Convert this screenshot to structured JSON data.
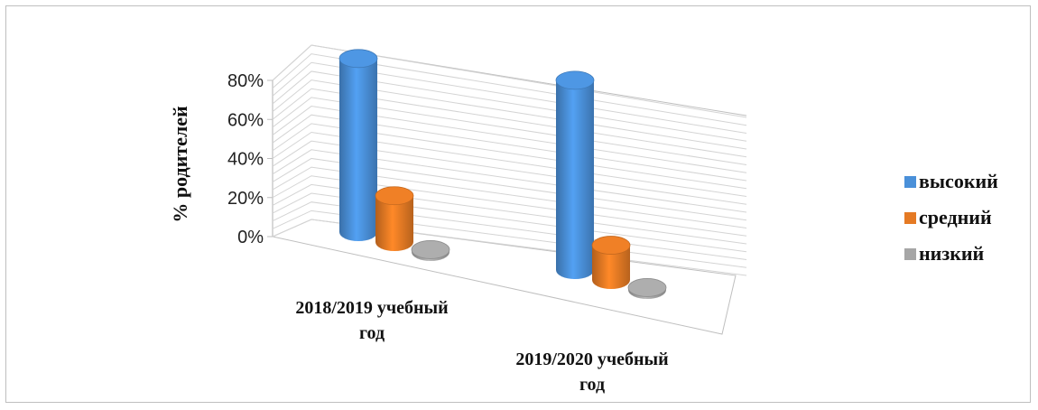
{
  "chart_data": {
    "type": "bar",
    "style": "3d-cylinder",
    "categories": [
      "2018/2019 учебный год",
      "2019/2020 учебный год"
    ],
    "category_lines": [
      [
        "2018/2019 учебный",
        "год"
      ],
      [
        "2019/2020 учебный",
        "год"
      ]
    ],
    "series": [
      {
        "name": "высокий",
        "values": [
          0.75,
          0.82
        ],
        "color": "#4a90d9"
      },
      {
        "name": "средний",
        "values": [
          0.2,
          0.15
        ],
        "color": "#e57a24"
      },
      {
        "name": "низкий",
        "values": [
          0.01,
          0.01
        ],
        "color": "#a6a6a6"
      }
    ],
    "title": "",
    "xlabel": "",
    "ylabel": "% родителей",
    "ylim": [
      0,
      0.8
    ],
    "yticks": [
      "0%",
      "20%",
      "40%",
      "60%",
      "80%"
    ],
    "grid": true,
    "legend_position": "right"
  }
}
